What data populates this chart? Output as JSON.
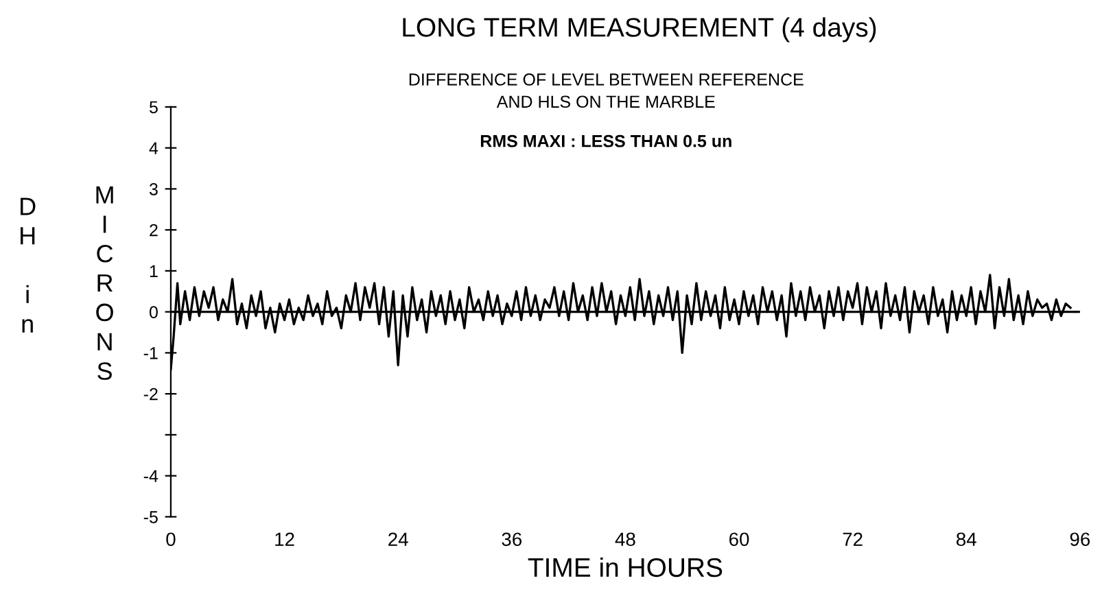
{
  "chart_data": {
    "type": "line",
    "title": "LONG TERM MEASUREMENT (4 days)",
    "subtitle": "DIFFERENCE OF LEVEL BETWEEN REFERENCE\nAND HLS ON THE MARBLE",
    "xlabel": "TIME in HOURS",
    "ylabel": "DH in MICRONS",
    "annotations": [
      "RMS MAXI : LESS THAN 0.5 un"
    ],
    "x": [
      0,
      0.3,
      0.7,
      1,
      1.5,
      2,
      2.5,
      3,
      3.5,
      4,
      4.5,
      5,
      5.5,
      6,
      6.5,
      7,
      7.5,
      8,
      8.5,
      9,
      9.5,
      10,
      10.5,
      11,
      11.5,
      12,
      12.5,
      13,
      13.5,
      14,
      14.5,
      15,
      15.5,
      16,
      16.5,
      17,
      17.5,
      18,
      18.5,
      19,
      19.5,
      20,
      20.5,
      21,
      21.5,
      22,
      22.5,
      23,
      23.5,
      24,
      24.5,
      25,
      25.5,
      26,
      26.5,
      27,
      27.5,
      28,
      28.5,
      29,
      29.5,
      30,
      30.5,
      31,
      31.5,
      32,
      32.5,
      33,
      33.5,
      34,
      34.5,
      35,
      35.5,
      36,
      36.5,
      37,
      37.5,
      38,
      38.5,
      39,
      39.5,
      40,
      40.5,
      41,
      41.5,
      42,
      42.5,
      43,
      43.5,
      44,
      44.5,
      45,
      45.5,
      46,
      46.5,
      47,
      47.5,
      48,
      48.5,
      49,
      49.5,
      50,
      50.5,
      51,
      51.5,
      52,
      52.5,
      53,
      53.5,
      54,
      54.5,
      55,
      55.5,
      56,
      56.5,
      57,
      57.5,
      58,
      58.5,
      59,
      59.5,
      60,
      60.5,
      61,
      61.5,
      62,
      62.5,
      63,
      63.5,
      64,
      64.5,
      65,
      65.5,
      66,
      66.5,
      67,
      67.5,
      68,
      68.5,
      69,
      69.5,
      70,
      70.5,
      71,
      71.5,
      72,
      72.5,
      73,
      73.5,
      74,
      74.5,
      75,
      75.5,
      76,
      76.5,
      77,
      77.5,
      78,
      78.5,
      79,
      79.5,
      80,
      80.5,
      81,
      81.5,
      82,
      82.5,
      83,
      83.5,
      84,
      84.5,
      85,
      85.5,
      86,
      86.5,
      87,
      87.5,
      88,
      88.5,
      89,
      89.5,
      90,
      90.5,
      91,
      91.5,
      92,
      92.5,
      93,
      93.5,
      94,
      94.5,
      95
    ],
    "series": [
      {
        "color": "#000000",
        "values": [
          -1.4,
          -0.6,
          0.7,
          -0.3,
          0.5,
          -0.2,
          0.6,
          -0.1,
          0.5,
          0.1,
          0.6,
          -0.2,
          0.3,
          0.0,
          0.8,
          -0.3,
          0.2,
          -0.4,
          0.4,
          -0.1,
          0.5,
          -0.4,
          0.1,
          -0.5,
          0.2,
          -0.2,
          0.3,
          -0.3,
          0.1,
          -0.2,
          0.4,
          -0.1,
          0.2,
          -0.3,
          0.5,
          -0.1,
          0.1,
          -0.4,
          0.4,
          0.0,
          0.7,
          -0.2,
          0.6,
          0.1,
          0.7,
          -0.3,
          0.6,
          -0.6,
          0.5,
          -1.3,
          0.4,
          -0.6,
          0.6,
          -0.2,
          0.3,
          -0.5,
          0.5,
          -0.1,
          0.4,
          -0.3,
          0.5,
          -0.2,
          0.3,
          -0.4,
          0.6,
          0.0,
          0.3,
          -0.2,
          0.5,
          -0.1,
          0.4,
          -0.3,
          0.2,
          -0.1,
          0.5,
          -0.2,
          0.6,
          -0.1,
          0.4,
          -0.2,
          0.3,
          0.1,
          0.6,
          -0.1,
          0.5,
          -0.2,
          0.7,
          0.0,
          0.4,
          -0.2,
          0.6,
          -0.1,
          0.7,
          0.0,
          0.5,
          -0.3,
          0.4,
          -0.1,
          0.6,
          -0.2,
          0.8,
          -0.1,
          0.5,
          -0.3,
          0.4,
          -0.1,
          0.6,
          -0.2,
          0.5,
          -1.0,
          0.4,
          -0.3,
          0.7,
          -0.2,
          0.5,
          -0.1,
          0.4,
          -0.4,
          0.6,
          -0.2,
          0.3,
          -0.3,
          0.5,
          -0.1,
          0.4,
          -0.3,
          0.6,
          0.0,
          0.5,
          -0.2,
          0.4,
          -0.6,
          0.7,
          -0.1,
          0.5,
          -0.2,
          0.6,
          0.0,
          0.4,
          -0.4,
          0.5,
          -0.1,
          0.6,
          -0.2,
          0.5,
          0.1,
          0.7,
          -0.3,
          0.6,
          0.0,
          0.5,
          -0.4,
          0.7,
          -0.1,
          0.4,
          -0.2,
          0.6,
          -0.5,
          0.5,
          0.0,
          0.4,
          -0.3,
          0.6,
          -0.1,
          0.3,
          -0.5,
          0.5,
          -0.2,
          0.4,
          -0.1,
          0.6,
          -0.3,
          0.5,
          0.0,
          0.9,
          -0.4,
          0.6,
          -0.1,
          0.8,
          -0.2,
          0.4,
          -0.3,
          0.5,
          -0.1,
          0.3,
          0.1,
          0.2,
          -0.2,
          0.3,
          -0.1,
          0.2,
          0.1
        ]
      }
    ],
    "xlim": [
      0,
      96
    ],
    "ylim": [
      -5,
      5
    ],
    "xticks": [
      0,
      12,
      24,
      36,
      48,
      60,
      72,
      84,
      96
    ],
    "yticks": [
      -5,
      -4,
      {
        "value": -3,
        "label": null
      },
      -2,
      -1,
      0,
      1,
      2,
      3,
      4,
      5
    ],
    "ref_lines": [
      {
        "axis": "y",
        "value": 0,
        "color": "#000000"
      }
    ],
    "grid": false,
    "legend": false,
    "line_style": "solid",
    "marker": "none"
  }
}
